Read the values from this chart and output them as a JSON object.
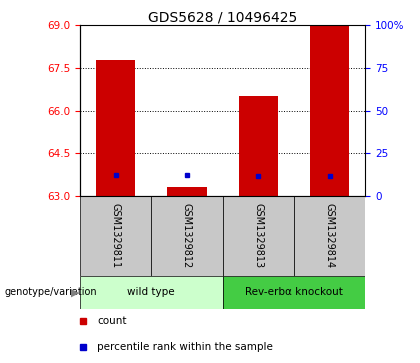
{
  "title": "GDS5628 / 10496425",
  "samples": [
    "GSM1329811",
    "GSM1329812",
    "GSM1329813",
    "GSM1329814"
  ],
  "bar_tops": [
    67.8,
    63.32,
    66.5,
    69.0
  ],
  "bar_base": 63.0,
  "percentile_values": [
    63.75,
    63.75,
    63.72,
    63.72
  ],
  "ylim_left": [
    63,
    69
  ],
  "ylim_right": [
    0,
    100
  ],
  "yticks_left": [
    63,
    64.5,
    66,
    67.5,
    69
  ],
  "yticks_right": [
    0,
    25,
    50,
    75,
    100
  ],
  "ytick_labels_right": [
    "0",
    "25",
    "50",
    "75",
    "100%"
  ],
  "bar_color": "#cc0000",
  "blue_color": "#0000cc",
  "group1_label": "wild type",
  "group2_label": "Rev-erbα knockout",
  "group1_bg": "#ccffcc",
  "group2_bg": "#44cc44",
  "sample_box_bg": "#c8c8c8",
  "genotype_label": "genotype/variation",
  "legend_count": "count",
  "legend_percentile": "percentile rank within the sample",
  "bar_width": 0.55,
  "title_fontsize": 10,
  "tick_fontsize": 7.5,
  "sample_fontsize": 7,
  "group_fontsize": 7.5,
  "legend_fontsize": 7.5
}
